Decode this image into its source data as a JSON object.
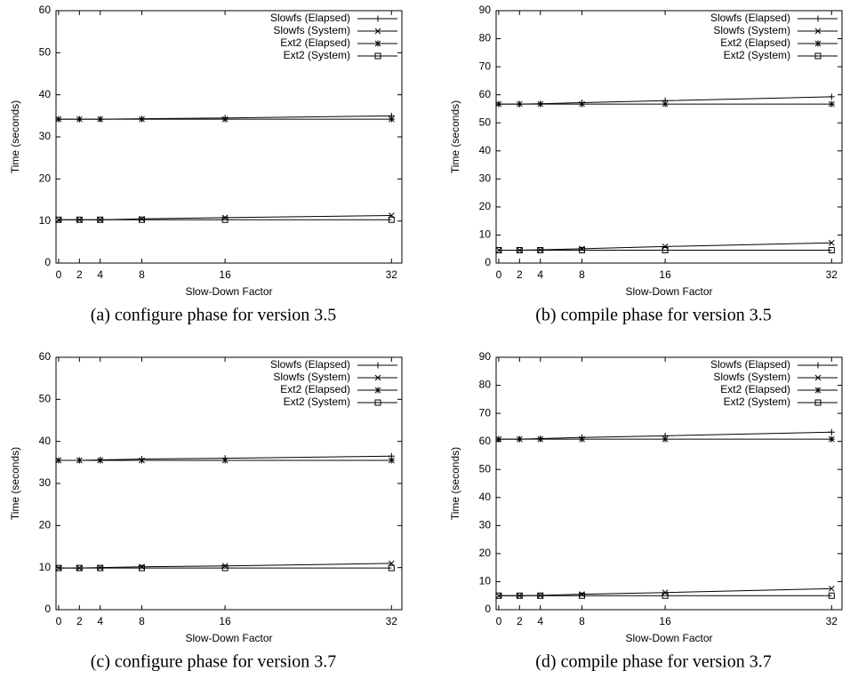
{
  "chart_data": [
    {
      "type": "line",
      "caption": "(a) configure phase for version 3.5",
      "xlabel": "Slow-Down Factor",
      "ylabel": "Time (seconds)",
      "x": [
        0,
        2,
        4,
        8,
        16,
        32
      ],
      "xlim": [
        -0.25,
        33
      ],
      "xticks": [
        0,
        2,
        4,
        8,
        16,
        32
      ],
      "ylim": [
        0,
        60
      ],
      "yticks": [
        0,
        10,
        20,
        30,
        40,
        50,
        60
      ],
      "series": [
        {
          "name": "Slowfs (Elapsed)",
          "color": "#000000",
          "marker": "plus",
          "values": [
            34.2,
            34.2,
            34.2,
            34.3,
            34.5,
            35.0
          ]
        },
        {
          "name": "Slowfs (System)",
          "color": "#000000",
          "marker": "cross",
          "values": [
            10.3,
            10.3,
            10.3,
            10.5,
            10.8,
            11.3
          ]
        },
        {
          "name": "Ext2 (Elapsed)",
          "color": "#000000",
          "marker": "star",
          "values": [
            34.2,
            34.2,
            34.2,
            34.2,
            34.2,
            34.2
          ]
        },
        {
          "name": "Ext2 (System)",
          "color": "#000000",
          "marker": "square",
          "values": [
            10.3,
            10.3,
            10.3,
            10.3,
            10.3,
            10.3
          ]
        }
      ]
    },
    {
      "type": "line",
      "caption": "(b) compile phase for version 3.5",
      "xlabel": "Slow-Down Factor",
      "ylabel": "Time (seconds)",
      "x": [
        0,
        2,
        4,
        8,
        16,
        32
      ],
      "xlim": [
        -0.25,
        33
      ],
      "xticks": [
        0,
        2,
        4,
        8,
        16,
        32
      ],
      "ylim": [
        0,
        90
      ],
      "yticks": [
        0,
        10,
        20,
        30,
        40,
        50,
        60,
        70,
        80,
        90
      ],
      "series": [
        {
          "name": "Slowfs (Elapsed)",
          "color": "#000000",
          "marker": "plus",
          "values": [
            56.7,
            56.7,
            56.8,
            57.2,
            57.9,
            59.3
          ]
        },
        {
          "name": "Slowfs (System)",
          "color": "#000000",
          "marker": "cross",
          "values": [
            4.6,
            4.6,
            4.7,
            5.1,
            5.9,
            7.2
          ]
        },
        {
          "name": "Ext2 (Elapsed)",
          "color": "#000000",
          "marker": "star",
          "values": [
            56.7,
            56.7,
            56.7,
            56.7,
            56.7,
            56.7
          ]
        },
        {
          "name": "Ext2 (System)",
          "color": "#000000",
          "marker": "square",
          "values": [
            4.6,
            4.6,
            4.6,
            4.6,
            4.6,
            4.6
          ]
        }
      ]
    },
    {
      "type": "line",
      "caption": "(c) configure phase for version 3.7",
      "xlabel": "Slow-Down Factor",
      "ylabel": "Time (seconds)",
      "x": [
        0,
        2,
        4,
        8,
        16,
        32
      ],
      "xlim": [
        -0.25,
        33
      ],
      "xticks": [
        0,
        2,
        4,
        8,
        16,
        32
      ],
      "ylim": [
        0,
        60
      ],
      "yticks": [
        0,
        10,
        20,
        30,
        40,
        50,
        60
      ],
      "series": [
        {
          "name": "Slowfs (Elapsed)",
          "color": "#000000",
          "marker": "plus",
          "values": [
            35.5,
            35.5,
            35.6,
            35.8,
            36.0,
            36.5
          ]
        },
        {
          "name": "Slowfs (System)",
          "color": "#000000",
          "marker": "cross",
          "values": [
            9.9,
            9.9,
            10.0,
            10.2,
            10.4,
            11.0
          ]
        },
        {
          "name": "Ext2 (Elapsed)",
          "color": "#000000",
          "marker": "star",
          "values": [
            35.5,
            35.5,
            35.5,
            35.5,
            35.5,
            35.5
          ]
        },
        {
          "name": "Ext2 (System)",
          "color": "#000000",
          "marker": "square",
          "values": [
            9.9,
            9.9,
            9.9,
            9.9,
            9.9,
            9.9
          ]
        }
      ]
    },
    {
      "type": "line",
      "caption": "(d) compile phase for version 3.7",
      "xlabel": "Slow-Down Factor",
      "ylabel": "Time (seconds)",
      "x": [
        0,
        2,
        4,
        8,
        16,
        32
      ],
      "xlim": [
        -0.25,
        33
      ],
      "xticks": [
        0,
        2,
        4,
        8,
        16,
        32
      ],
      "ylim": [
        0,
        90
      ],
      "yticks": [
        0,
        10,
        20,
        30,
        40,
        50,
        60,
        70,
        80,
        90
      ],
      "series": [
        {
          "name": "Slowfs (Elapsed)",
          "color": "#000000",
          "marker": "plus",
          "values": [
            60.8,
            60.8,
            61.0,
            61.4,
            62.0,
            63.3
          ]
        },
        {
          "name": "Slowfs (System)",
          "color": "#000000",
          "marker": "cross",
          "values": [
            5.0,
            5.0,
            5.1,
            5.5,
            6.1,
            7.5
          ]
        },
        {
          "name": "Ext2 (Elapsed)",
          "color": "#000000",
          "marker": "star",
          "values": [
            60.8,
            60.8,
            60.8,
            60.8,
            60.8,
            60.8
          ]
        },
        {
          "name": "Ext2 (System)",
          "color": "#000000",
          "marker": "square",
          "values": [
            5.0,
            5.0,
            5.0,
            5.0,
            5.0,
            5.0
          ]
        }
      ]
    }
  ]
}
